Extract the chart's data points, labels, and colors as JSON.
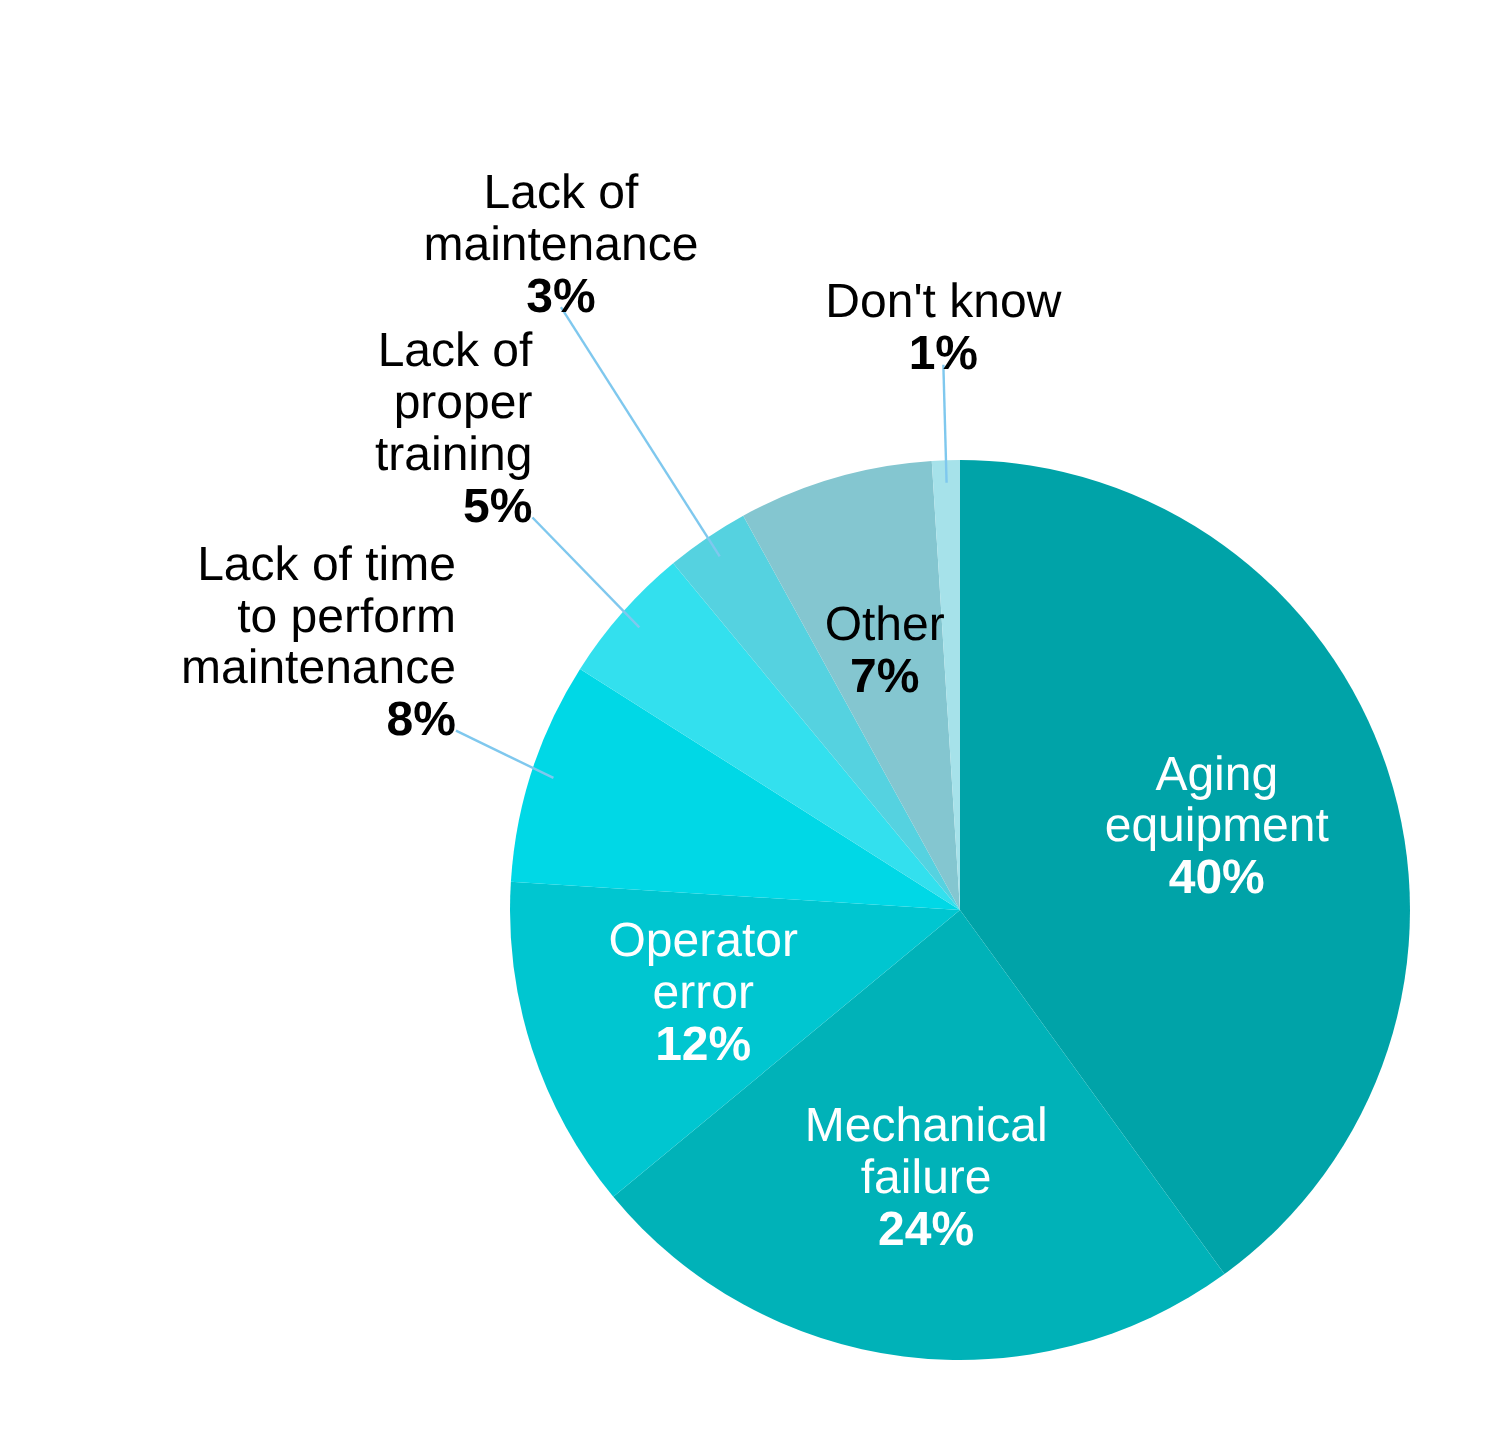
{
  "chart_data": {
    "type": "pie",
    "categories": [
      "Aging equipment",
      "Mechanical failure",
      "Operator error",
      "Lack of time to perform maintenance",
      "Lack of proper training",
      "Lack of maintenance",
      "Other",
      "Don't know"
    ],
    "values": [
      40,
      24,
      12,
      8,
      5,
      3,
      7,
      1
    ],
    "value_labels": [
      "40%",
      "24%",
      "12%",
      "8%",
      "5%",
      "3%",
      "7%",
      "1%"
    ],
    "colors": [
      "#00a3a8",
      "#00b2b8",
      "#00c6d0",
      "#00d8e6",
      "#33e0ee",
      "#55d2e0",
      "#84c6d0",
      "#a6e2ea"
    ]
  }
}
